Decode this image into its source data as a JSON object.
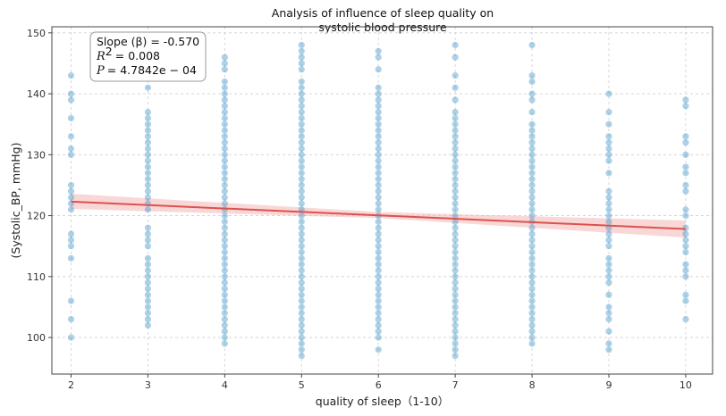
{
  "chart_data": {
    "type": "scatter",
    "title_line1": "Analysis of influence of sleep quality on",
    "title_line2": "systolic blood pressure",
    "xlabel": "quality of sleep（1-10）",
    "ylabel": "(Systolic_BP, mmHg)",
    "xlim": [
      1.75,
      10.35
    ],
    "ylim": [
      94,
      151
    ],
    "xticks": [
      2,
      3,
      4,
      5,
      6,
      7,
      8,
      9,
      10
    ],
    "yticks": [
      100,
      110,
      120,
      130,
      140,
      150
    ],
    "grid": true,
    "point_color": "#4a98c9",
    "line_color": "#d9534f",
    "band_color": "#f4b6b6",
    "annotation": {
      "slope_text": "Slope (β) = -0.570",
      "r2_text": "= 0.008",
      "p_text": "= 4.7842e − 04"
    },
    "regression": {
      "x_start": 2,
      "x_end": 10,
      "y_start": 122.3,
      "y_end": 117.8,
      "band_start": [
        121.1,
        123.6
      ],
      "band_mid": [
        119.6,
        120.6
      ],
      "band_end": [
        116.4,
        119.2
      ]
    },
    "points": [
      {
        "x": 2,
        "y": [
          100,
          103,
          106,
          113,
          115,
          116,
          117,
          121,
          122,
          123,
          124,
          125,
          130,
          131,
          133,
          136,
          139,
          140,
          143
        ]
      },
      {
        "x": 3,
        "y": [
          102,
          103,
          104,
          105,
          106,
          107,
          108,
          109,
          110,
          111,
          112,
          113,
          115,
          116,
          117,
          118,
          121,
          122,
          123,
          124,
          125,
          126,
          127,
          128,
          129,
          130,
          131,
          132,
          133,
          134,
          135,
          136,
          137,
          141
        ]
      },
      {
        "x": 4,
        "y": [
          99,
          100,
          101,
          102,
          103,
          104,
          105,
          106,
          107,
          108,
          109,
          110,
          111,
          112,
          113,
          114,
          115,
          116,
          117,
          118,
          119,
          120,
          121,
          122,
          123,
          124,
          125,
          126,
          127,
          128,
          129,
          130,
          131,
          132,
          133,
          134,
          135,
          136,
          137,
          138,
          139,
          140,
          141,
          142,
          144,
          145,
          146
        ]
      },
      {
        "x": 5,
        "y": [
          97,
          98,
          99,
          100,
          101,
          102,
          103,
          104,
          105,
          106,
          107,
          108,
          109,
          110,
          111,
          112,
          113,
          114,
          115,
          116,
          117,
          118,
          119,
          120,
          121,
          122,
          123,
          124,
          125,
          126,
          127,
          128,
          129,
          130,
          131,
          132,
          133,
          134,
          135,
          136,
          137,
          138,
          139,
          140,
          141,
          142,
          144,
          145,
          146,
          147,
          148
        ]
      },
      {
        "x": 6,
        "y": [
          98,
          100,
          101,
          102,
          103,
          104,
          105,
          106,
          107,
          108,
          109,
          110,
          111,
          112,
          113,
          114,
          115,
          116,
          117,
          118,
          119,
          120,
          121,
          122,
          123,
          124,
          125,
          126,
          127,
          128,
          129,
          130,
          131,
          132,
          133,
          134,
          135,
          136,
          137,
          138,
          139,
          140,
          141,
          144,
          146,
          147
        ]
      },
      {
        "x": 7,
        "y": [
          97,
          98,
          99,
          100,
          101,
          102,
          103,
          104,
          105,
          106,
          107,
          108,
          109,
          110,
          111,
          112,
          113,
          114,
          115,
          116,
          117,
          118,
          119,
          120,
          121,
          122,
          123,
          124,
          125,
          126,
          127,
          128,
          129,
          130,
          131,
          132,
          133,
          134,
          135,
          136,
          137,
          139,
          141,
          143,
          146,
          148
        ]
      },
      {
        "x": 8,
        "y": [
          99,
          100,
          101,
          102,
          103,
          104,
          105,
          106,
          107,
          108,
          109,
          110,
          111,
          112,
          113,
          114,
          115,
          116,
          117,
          118,
          119,
          120,
          121,
          122,
          123,
          124,
          125,
          126,
          127,
          128,
          129,
          130,
          131,
          132,
          133,
          134,
          135,
          137,
          139,
          140,
          142,
          143,
          148
        ]
      },
      {
        "x": 9,
        "y": [
          98,
          99,
          101,
          103,
          104,
          105,
          107,
          109,
          110,
          111,
          112,
          113,
          115,
          116,
          117,
          118,
          119,
          120,
          121,
          122,
          123,
          124,
          127,
          129,
          130,
          131,
          132,
          133,
          135,
          137,
          140
        ]
      },
      {
        "x": 10,
        "y": [
          103,
          106,
          107,
          110,
          111,
          112,
          114,
          115,
          116,
          117,
          118,
          120,
          121,
          124,
          125,
          127,
          128,
          130,
          132,
          133,
          138,
          139
        ]
      }
    ]
  }
}
